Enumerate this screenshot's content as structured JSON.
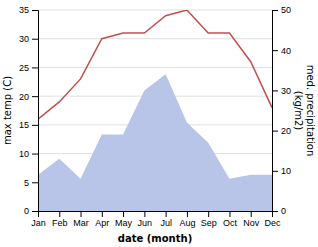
{
  "chart_data": {
    "type": "line",
    "categories": [
      "Jan",
      "Feb",
      "Mar",
      "Apr",
      "May",
      "Jun",
      "Jul",
      "Aug",
      "Sep",
      "Oct",
      "Nov",
      "Dec"
    ],
    "series": [
      {
        "type": "area",
        "axis": "y2",
        "color": "#b8c4e8",
        "values": [
          9,
          13,
          8,
          19,
          19,
          30,
          34,
          22,
          17,
          8,
          9,
          9
        ]
      },
      {
        "type": "line",
        "color": "#c0504d",
        "values": [
          16,
          19,
          23,
          30,
          31,
          31,
          34,
          35,
          31,
          31,
          26,
          18
        ]
      }
    ],
    "xlabel": "date (month)",
    "ylabel": "max temp (C)",
    "y2label": "med. precipitation\n(kg/m2)",
    "ylim": [
      0,
      35
    ],
    "yticks": [
      0,
      5,
      10,
      15,
      20,
      25,
      30,
      35
    ],
    "y2lim": [
      0,
      50
    ],
    "y2ticks": [
      0,
      10,
      20,
      30,
      40,
      50
    ],
    "grid": true
  }
}
